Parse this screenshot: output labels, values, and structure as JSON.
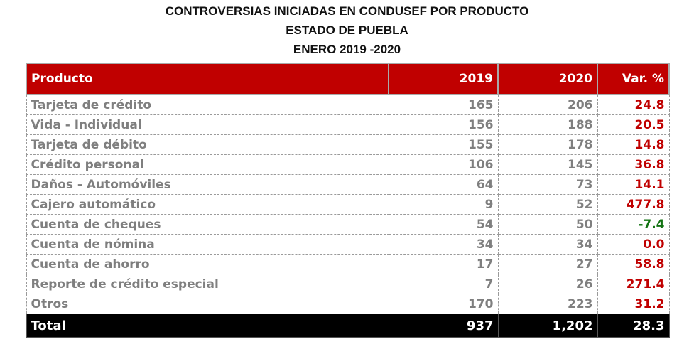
{
  "title": {
    "line1": "CONTROVERSIAS INICIADAS EN CONDUSEF POR PRODUCTO",
    "line2": "ESTADO DE PUEBLA",
    "line3": "ENERO 2019 -2020"
  },
  "table": {
    "headers": [
      "Producto",
      "2019",
      "2020",
      "Var. %"
    ],
    "rows": [
      {
        "product": "Tarjeta de crédito",
        "y2019": "165",
        "y2020": "206",
        "var": "24.8"
      },
      {
        "product": "Vida - Individual",
        "y2019": "156",
        "y2020": "188",
        "var": "20.5"
      },
      {
        "product": "Tarjeta de débito",
        "y2019": "155",
        "y2020": "178",
        "var": "14.8"
      },
      {
        "product": "Crédito personal",
        "y2019": "106",
        "y2020": "145",
        "var": "36.8"
      },
      {
        "product": "Daños - Automóviles",
        "y2019": "64",
        "y2020": "73",
        "var": "14.1"
      },
      {
        "product": "Cajero automático",
        "y2019": "9",
        "y2020": "52",
        "var": "477.8"
      },
      {
        "product": "Cuenta de cheques",
        "y2019": "54",
        "y2020": "50",
        "var": "-7.4"
      },
      {
        "product": "Cuenta de nómina",
        "y2019": "34",
        "y2020": "34",
        "var": "0.0"
      },
      {
        "product": "Cuenta de ahorro",
        "y2019": "17",
        "y2020": "27",
        "var": "58.8"
      },
      {
        "product": "Reporte de crédito especial",
        "y2019": "7",
        "y2020": "26",
        "var": "271.4"
      },
      {
        "product": "Otros",
        "y2019": "170",
        "y2020": "223",
        "var": "31.2"
      }
    ],
    "total": {
      "product": "Total",
      "y2019": "937",
      "y2020": "1,202",
      "var": "28.3"
    }
  },
  "colors": {
    "header_bg": "#c00000",
    "positive": "#c00000",
    "negative": "#137313",
    "total_bg": "#000000"
  }
}
